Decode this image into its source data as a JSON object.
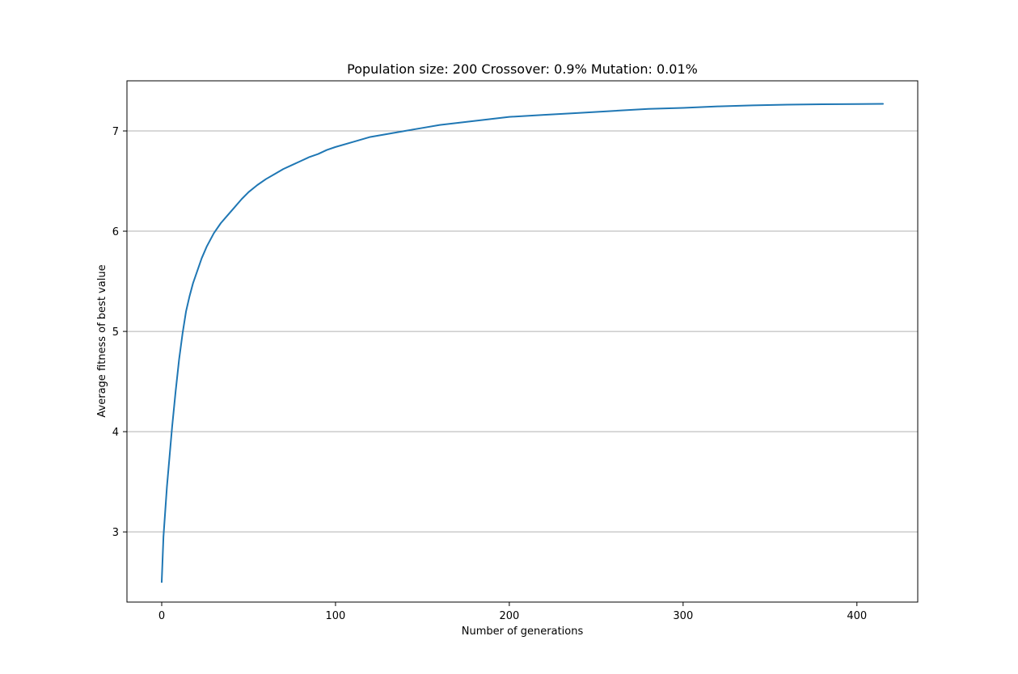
{
  "chart_data": {
    "type": "line",
    "title": "Population size: 200 Crossover: 0.9% Mutation: 0.01%",
    "xlabel": "Number of generations",
    "ylabel": "Average fitness of best value",
    "xlim": [
      -20,
      435
    ],
    "ylim": [
      2.3,
      7.5
    ],
    "xticks": [
      0,
      100,
      200,
      300,
      400
    ],
    "xtick_labels": [
      "0",
      "100",
      "200",
      "300",
      "400"
    ],
    "yticks": [
      3,
      4,
      5,
      6,
      7
    ],
    "ytick_labels": [
      "3",
      "4",
      "5",
      "6",
      "7"
    ],
    "grid": "y",
    "legend": "none",
    "series": [
      {
        "color": "#1f77b4",
        "x": [
          0,
          1,
          2,
          3,
          4,
          5,
          6,
          8,
          10,
          12,
          14,
          16,
          18,
          20,
          23,
          26,
          30,
          34,
          38,
          42,
          46,
          50,
          55,
          60,
          65,
          70,
          75,
          80,
          85,
          90,
          95,
          100,
          110,
          120,
          130,
          140,
          150,
          160,
          170,
          180,
          190,
          200,
          220,
          240,
          260,
          280,
          300,
          320,
          340,
          360,
          380,
          400,
          415
        ],
        "y": [
          2.5,
          2.95,
          3.2,
          3.45,
          3.65,
          3.85,
          4.05,
          4.4,
          4.72,
          4.98,
          5.2,
          5.35,
          5.48,
          5.58,
          5.73,
          5.85,
          5.98,
          6.08,
          6.16,
          6.24,
          6.32,
          6.39,
          6.46,
          6.52,
          6.57,
          6.62,
          6.66,
          6.7,
          6.74,
          6.77,
          6.81,
          6.84,
          6.89,
          6.94,
          6.97,
          7.0,
          7.03,
          7.06,
          7.08,
          7.1,
          7.12,
          7.14,
          7.16,
          7.18,
          7.2,
          7.22,
          7.23,
          7.245,
          7.255,
          7.262,
          7.266,
          7.268,
          7.27
        ]
      }
    ]
  }
}
